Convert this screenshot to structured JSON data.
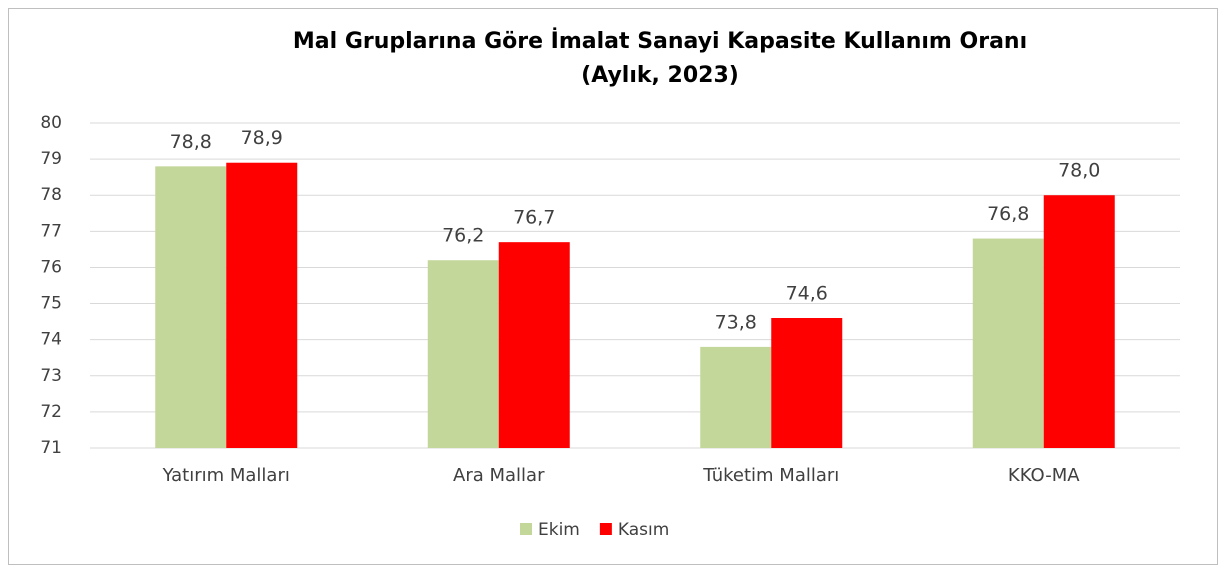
{
  "chart_data": {
    "type": "bar",
    "title": "Mal Gruplarına Göre İmalat Sanayi Kapasite Kullanım Oranı",
    "subtitle": "(Aylık, 2023)",
    "categories": [
      "Yatırım Malları",
      "Ara Mallar",
      "Tüketim Malları",
      "KKO-MA"
    ],
    "series": [
      {
        "name": "Ekim",
        "color": "#c4d79b",
        "values": [
          78.8,
          76.2,
          73.8,
          76.8
        ],
        "value_labels": [
          "78,8",
          "76,2",
          "73,8",
          "76,8"
        ]
      },
      {
        "name": "Kasım",
        "color": "#ff0000",
        "values": [
          78.9,
          76.7,
          74.6,
          78.0
        ],
        "value_labels": [
          "78,9",
          "76,7",
          "74,6",
          "78,0"
        ]
      }
    ],
    "ylim": [
      71,
      80
    ],
    "yticks": [
      71,
      72,
      73,
      74,
      75,
      76,
      77,
      78,
      79,
      80
    ],
    "grid": true,
    "legend": "bottom"
  }
}
